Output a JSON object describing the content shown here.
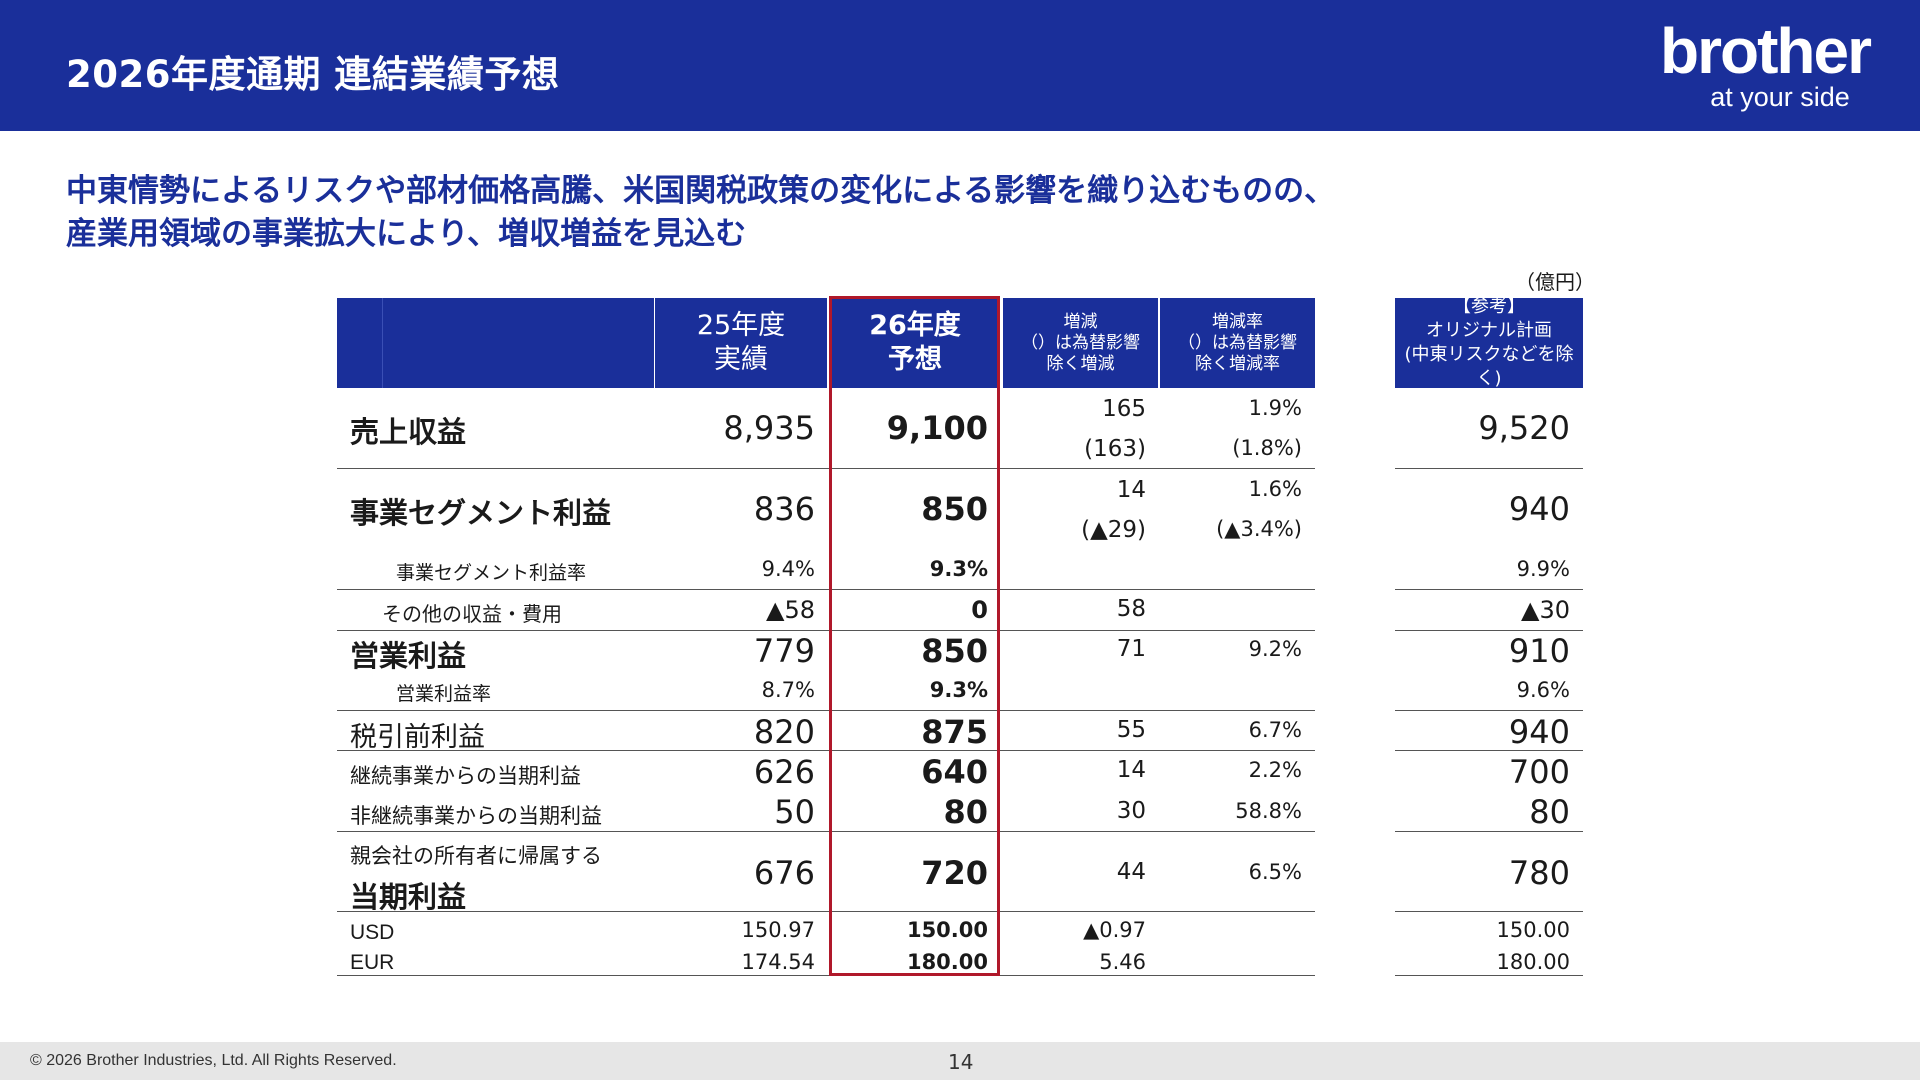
{
  "header": {
    "title": "2026年度通期 連結業績予想",
    "logo_word": "brother",
    "logo_tagline": "at your side",
    "bg_color": "#1a2f9a"
  },
  "headline": {
    "line1": "中東情勢によるリスクや部材価格高騰、米国関税政策の変化による影響を織り込むものの、",
    "line2": "産業用領域の事業拡大により、増収増益を見込む"
  },
  "unit": "（億円）",
  "table": {
    "headers": {
      "fy25_line1": "25年度",
      "fy25_line2": "実績",
      "fy26_line1": "26年度",
      "fy26_line2": "予想",
      "diff_line1": "増減",
      "diff_line2": "（）は為替影響",
      "diff_line3": "除く増減",
      "rate_line1": "増減率",
      "rate_line2": "（）は為替影響",
      "rate_line3": "除く増減率",
      "ref_line1": "【参考】",
      "ref_line2": "オリジナル計画",
      "ref_line3": "(中東リスクなどを除く)"
    },
    "rows": {
      "sales": {
        "label": "売上収益",
        "fy25": "8,935",
        "fy26": "9,100",
        "diff": "165",
        "diff_fx": "(163)",
        "rate": "1.9%",
        "rate_fx": "(1.8%)",
        "ref": "9,520"
      },
      "segment": {
        "label": "事業セグメント利益",
        "fy25": "836",
        "fy26": "850",
        "diff": "14",
        "diff_fx": "(▲29)",
        "rate": "1.6%",
        "rate_fx": "(▲3.4%)",
        "ref": "940"
      },
      "segment_rate": {
        "label": "事業セグメント利益率",
        "fy25": "9.4%",
        "fy26": "9.3%",
        "ref": "9.9%"
      },
      "other": {
        "label": "その他の収益・費用",
        "fy25": "▲58",
        "fy26": "0",
        "diff": "58",
        "ref": "▲30"
      },
      "operating": {
        "label": "営業利益",
        "fy25": "779",
        "fy26": "850",
        "diff": "71",
        "rate": "9.2%",
        "ref": "910"
      },
      "operating_rate": {
        "label": "営業利益率",
        "fy25": "8.7%",
        "fy26": "9.3%",
        "ref": "9.6%"
      },
      "pretax": {
        "label": "税引前利益",
        "fy25": "820",
        "fy26": "875",
        "diff": "55",
        "rate": "6.7%",
        "ref": "940"
      },
      "continuing": {
        "label": "継続事業からの当期利益",
        "fy25": "626",
        "fy26": "640",
        "diff": "14",
        "rate": "2.2%",
        "ref": "700"
      },
      "discontinued": {
        "label": "非継続事業からの当期利益",
        "fy25": "50",
        "fy26": "80",
        "diff": "30",
        "rate": "58.8%",
        "ref": "80"
      },
      "net": {
        "label_line1": "親会社の所有者に帰属する",
        "label_line2": "当期利益",
        "fy25": "676",
        "fy26": "720",
        "diff": "44",
        "rate": "6.5%",
        "ref": "780"
      },
      "usd": {
        "label": "USD",
        "fy25": "150.97",
        "fy26": "150.00",
        "diff": "▲0.97",
        "ref": "150.00"
      },
      "eur": {
        "label": "EUR",
        "fy25": "174.54",
        "fy26": "180.00",
        "diff": "5.46",
        "ref": "180.00"
      }
    },
    "highlight_color": "#b0182a"
  },
  "footer": {
    "copyright": "© 2026 Brother Industries, Ltd. All Rights Reserved.",
    "page_number": "14"
  }
}
